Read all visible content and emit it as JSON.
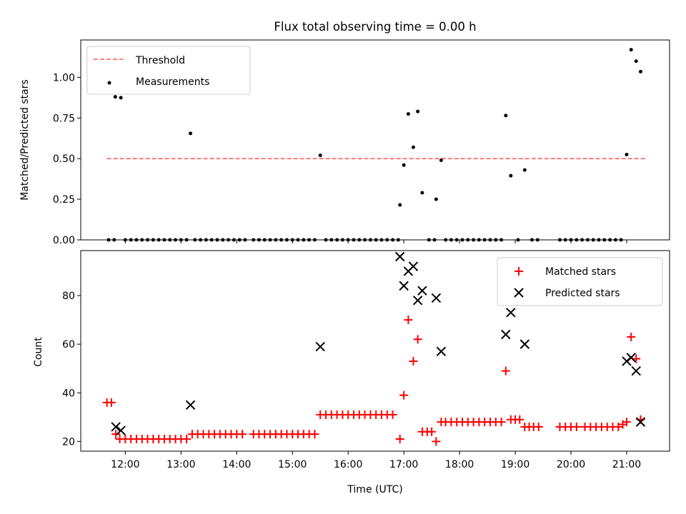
{
  "colors": {
    "threshold": "#ff7070",
    "matched": "#ff0000",
    "predicted": "#000000",
    "measurement": "#000000"
  },
  "chart_data": [
    {
      "type": "scatter",
      "title": "Flux total observing time = 0.00 h",
      "ylabel": "Matched/Predicted stars",
      "ylim": [
        0,
        1.23
      ],
      "yticks": [
        "0.00",
        "0.25",
        "0.50",
        "0.75",
        "1.00"
      ],
      "legend_position": "top-left",
      "threshold": {
        "name": "Threshold",
        "value": 0.5,
        "x_range": [
          11.67,
          21.33
        ]
      },
      "series": [
        {
          "name": "Measurements",
          "points": [
            [
              11.72,
              0.96
            ],
            [
              11.82,
              0.88
            ],
            [
              11.92,
              0.875
            ],
            [
              13.17,
              0.655
            ],
            [
              15.5,
              0.52
            ],
            [
              16.93,
              0.215
            ],
            [
              17.0,
              0.46
            ],
            [
              17.08,
              0.775
            ],
            [
              17.17,
              0.57
            ],
            [
              17.25,
              0.79
            ],
            [
              17.33,
              0.29
            ],
            [
              17.58,
              0.25
            ],
            [
              17.67,
              0.49
            ],
            [
              18.83,
              0.765
            ],
            [
              18.92,
              0.395
            ],
            [
              19.17,
              0.43
            ],
            [
              21.0,
              0.525
            ],
            [
              21.08,
              1.17
            ],
            [
              21.17,
              1.1
            ],
            [
              21.25,
              1.035
            ]
          ],
          "zeros_x": [
            11.7,
            11.8,
            12.0,
            12.1,
            12.2,
            12.3,
            12.4,
            12.5,
            12.6,
            12.7,
            12.8,
            12.9,
            13.0,
            13.1,
            13.25,
            13.35,
            13.45,
            13.55,
            13.65,
            13.75,
            13.85,
            13.95,
            14.05,
            14.15,
            14.3,
            14.4,
            14.5,
            14.6,
            14.7,
            14.8,
            14.9,
            15.0,
            15.1,
            15.2,
            15.3,
            15.4,
            15.6,
            15.7,
            15.8,
            15.9,
            16.0,
            16.1,
            16.2,
            16.3,
            16.4,
            16.5,
            16.6,
            16.7,
            16.8,
            16.9,
            17.45,
            17.55,
            17.75,
            17.85,
            17.95,
            18.05,
            18.15,
            18.25,
            18.35,
            18.45,
            18.55,
            18.65,
            18.75,
            19.05,
            19.3,
            19.4,
            19.8,
            19.9,
            20.0,
            20.1,
            20.2,
            20.3,
            20.4,
            20.5,
            20.6,
            20.7,
            20.8,
            20.9
          ]
        }
      ]
    },
    {
      "type": "scatter",
      "xlabel": "Time (UTC)",
      "ylabel": "Count",
      "ylim": [
        16,
        98.5
      ],
      "yticks": [
        20,
        40,
        60,
        80
      ],
      "xlim": [
        11.2,
        21.77
      ],
      "xticks": [
        "12:00",
        "13:00",
        "14:00",
        "15:00",
        "16:00",
        "17:00",
        "18:00",
        "19:00",
        "20:00",
        "21:00"
      ],
      "legend_position": "top-right",
      "series": [
        {
          "name": "Matched stars",
          "marker": "+",
          "points": [
            [
              11.67,
              36
            ],
            [
              11.75,
              36
            ],
            [
              11.83,
              23
            ],
            [
              11.9,
              21
            ],
            [
              12.0,
              21
            ],
            [
              12.1,
              21
            ],
            [
              12.2,
              21
            ],
            [
              12.3,
              21
            ],
            [
              12.4,
              21
            ],
            [
              12.5,
              21
            ],
            [
              12.6,
              21
            ],
            [
              12.7,
              21
            ],
            [
              12.8,
              21
            ],
            [
              12.9,
              21
            ],
            [
              13.0,
              21
            ],
            [
              13.1,
              21
            ],
            [
              13.2,
              23
            ],
            [
              13.3,
              23
            ],
            [
              13.4,
              23
            ],
            [
              13.5,
              23
            ],
            [
              13.6,
              23
            ],
            [
              13.7,
              23
            ],
            [
              13.8,
              23
            ],
            [
              13.9,
              23
            ],
            [
              14.0,
              23
            ],
            [
              14.1,
              23
            ],
            [
              14.3,
              23
            ],
            [
              14.4,
              23
            ],
            [
              14.5,
              23
            ],
            [
              14.6,
              23
            ],
            [
              14.7,
              23
            ],
            [
              14.8,
              23
            ],
            [
              14.9,
              23
            ],
            [
              15.0,
              23
            ],
            [
              15.1,
              23
            ],
            [
              15.2,
              23
            ],
            [
              15.3,
              23
            ],
            [
              15.4,
              23
            ],
            [
              15.5,
              31
            ],
            [
              15.6,
              31
            ],
            [
              15.7,
              31
            ],
            [
              15.8,
              31
            ],
            [
              15.9,
              31
            ],
            [
              16.0,
              31
            ],
            [
              16.1,
              31
            ],
            [
              16.2,
              31
            ],
            [
              16.3,
              31
            ],
            [
              16.4,
              31
            ],
            [
              16.5,
              31
            ],
            [
              16.6,
              31
            ],
            [
              16.7,
              31
            ],
            [
              16.8,
              31
            ],
            [
              16.93,
              21
            ],
            [
              17.0,
              39
            ],
            [
              17.08,
              70
            ],
            [
              17.17,
              53
            ],
            [
              17.25,
              62
            ],
            [
              17.33,
              24
            ],
            [
              17.42,
              24
            ],
            [
              17.5,
              24
            ],
            [
              17.58,
              20
            ],
            [
              17.67,
              28
            ],
            [
              17.75,
              28
            ],
            [
              17.85,
              28
            ],
            [
              17.95,
              28
            ],
            [
              18.05,
              28
            ],
            [
              18.15,
              28
            ],
            [
              18.25,
              28
            ],
            [
              18.35,
              28
            ],
            [
              18.45,
              28
            ],
            [
              18.55,
              28
            ],
            [
              18.65,
              28
            ],
            [
              18.75,
              28
            ],
            [
              18.83,
              49
            ],
            [
              18.92,
              29
            ],
            [
              19.0,
              29
            ],
            [
              19.08,
              29
            ],
            [
              19.17,
              26
            ],
            [
              19.25,
              26
            ],
            [
              19.33,
              26
            ],
            [
              19.42,
              26
            ],
            [
              19.8,
              26
            ],
            [
              19.9,
              26
            ],
            [
              20.0,
              26
            ],
            [
              20.1,
              26
            ],
            [
              20.25,
              26
            ],
            [
              20.35,
              26
            ],
            [
              20.45,
              26
            ],
            [
              20.55,
              26
            ],
            [
              20.65,
              26
            ],
            [
              20.75,
              26
            ],
            [
              20.85,
              26
            ],
            [
              20.93,
              27
            ],
            [
              21.0,
              28
            ],
            [
              21.08,
              63
            ],
            [
              21.17,
              54
            ],
            [
              21.25,
              29
            ]
          ]
        },
        {
          "name": "Predicted stars",
          "marker": "x",
          "points": [
            [
              11.83,
              26
            ],
            [
              11.92,
              24.5
            ],
            [
              13.17,
              35
            ],
            [
              15.5,
              59
            ],
            [
              16.93,
              96
            ],
            [
              17.0,
              84
            ],
            [
              17.08,
              90
            ],
            [
              17.17,
              92
            ],
            [
              17.25,
              78
            ],
            [
              17.33,
              82
            ],
            [
              17.58,
              79
            ],
            [
              17.67,
              57
            ],
            [
              18.83,
              64
            ],
            [
              18.92,
              73
            ],
            [
              19.17,
              60
            ],
            [
              21.0,
              53
            ],
            [
              21.08,
              54.5
            ],
            [
              21.17,
              49
            ],
            [
              21.25,
              28
            ]
          ]
        }
      ]
    }
  ]
}
